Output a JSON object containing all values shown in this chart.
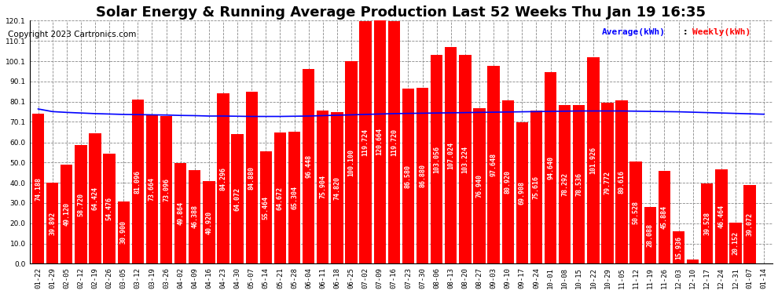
{
  "title": "Solar Energy & Running Average Production Last 52 Weeks Thu Jan 19 16:35",
  "copyright": "Copyright 2023 Cartronics.com",
  "legend_avg": "Average(kWh)",
  "legend_weekly": "Weekly(kWh)",
  "categories": [
    "01-22",
    "01-29",
    "02-05",
    "02-12",
    "02-19",
    "02-26",
    "03-05",
    "03-12",
    "03-19",
    "03-26",
    "04-02",
    "04-09",
    "04-16",
    "04-23",
    "04-30",
    "05-07",
    "05-14",
    "05-21",
    "05-28",
    "06-04",
    "06-11",
    "06-18",
    "06-25",
    "07-02",
    "07-09",
    "07-16",
    "07-23",
    "07-30",
    "08-06",
    "08-13",
    "08-20",
    "08-27",
    "09-03",
    "09-10",
    "09-17",
    "09-24",
    "10-01",
    "10-08",
    "10-15",
    "10-22",
    "10-29",
    "11-05",
    "11-12",
    "11-19",
    "11-26",
    "12-03",
    "12-10",
    "12-17",
    "12-24",
    "12-31",
    "01-07",
    "01-14"
  ],
  "weekly_values": [
    74.188,
    39.892,
    49.12,
    58.72,
    64.424,
    54.476,
    30.9,
    81.096,
    73.664,
    73.096,
    49.864,
    46.388,
    40.92,
    84.296,
    64.072,
    84.88,
    55.464,
    64.672,
    65.304,
    96.448,
    75.904,
    74.82,
    100.1,
    119.724,
    120.664,
    119.72,
    86.58,
    86.88,
    103.056,
    107.024,
    103.224,
    76.94,
    97.648,
    80.92,
    69.908,
    75.616,
    94.64,
    78.292,
    78.536,
    101.926,
    79.772,
    80.616,
    50.528,
    28.088,
    45.884,
    15.936,
    1.928,
    39.528,
    46.464,
    20.152,
    39.072,
    0.0
  ],
  "avg_values": [
    76.5,
    75.2,
    74.8,
    74.5,
    74.2,
    74.0,
    73.8,
    73.7,
    73.6,
    73.5,
    73.3,
    73.2,
    73.0,
    73.0,
    72.9,
    72.8,
    72.8,
    72.8,
    72.9,
    73.0,
    73.2,
    73.4,
    73.6,
    73.8,
    74.0,
    74.2,
    74.3,
    74.4,
    74.5,
    74.6,
    74.7,
    74.8,
    74.9,
    75.0,
    75.1,
    75.2,
    75.3,
    75.4,
    75.5,
    75.5,
    75.5,
    75.5,
    75.4,
    75.3,
    75.2,
    75.1,
    74.9,
    74.7,
    74.5,
    74.3,
    74.1,
    73.9
  ],
  "bar_color": "#ff0000",
  "line_color": "#0000ff",
  "bg_color": "#ffffff",
  "grid_color": "#888888",
  "title_fontsize": 13,
  "copyright_fontsize": 7.5,
  "label_fontsize": 6.0,
  "tick_fontsize": 6.5,
  "ylim": [
    0.0,
    120.1
  ],
  "yticks": [
    0.0,
    10.0,
    20.0,
    30.0,
    40.0,
    50.0,
    60.0,
    70.1,
    80.1,
    90.1,
    100.1,
    110.1,
    120.1
  ]
}
